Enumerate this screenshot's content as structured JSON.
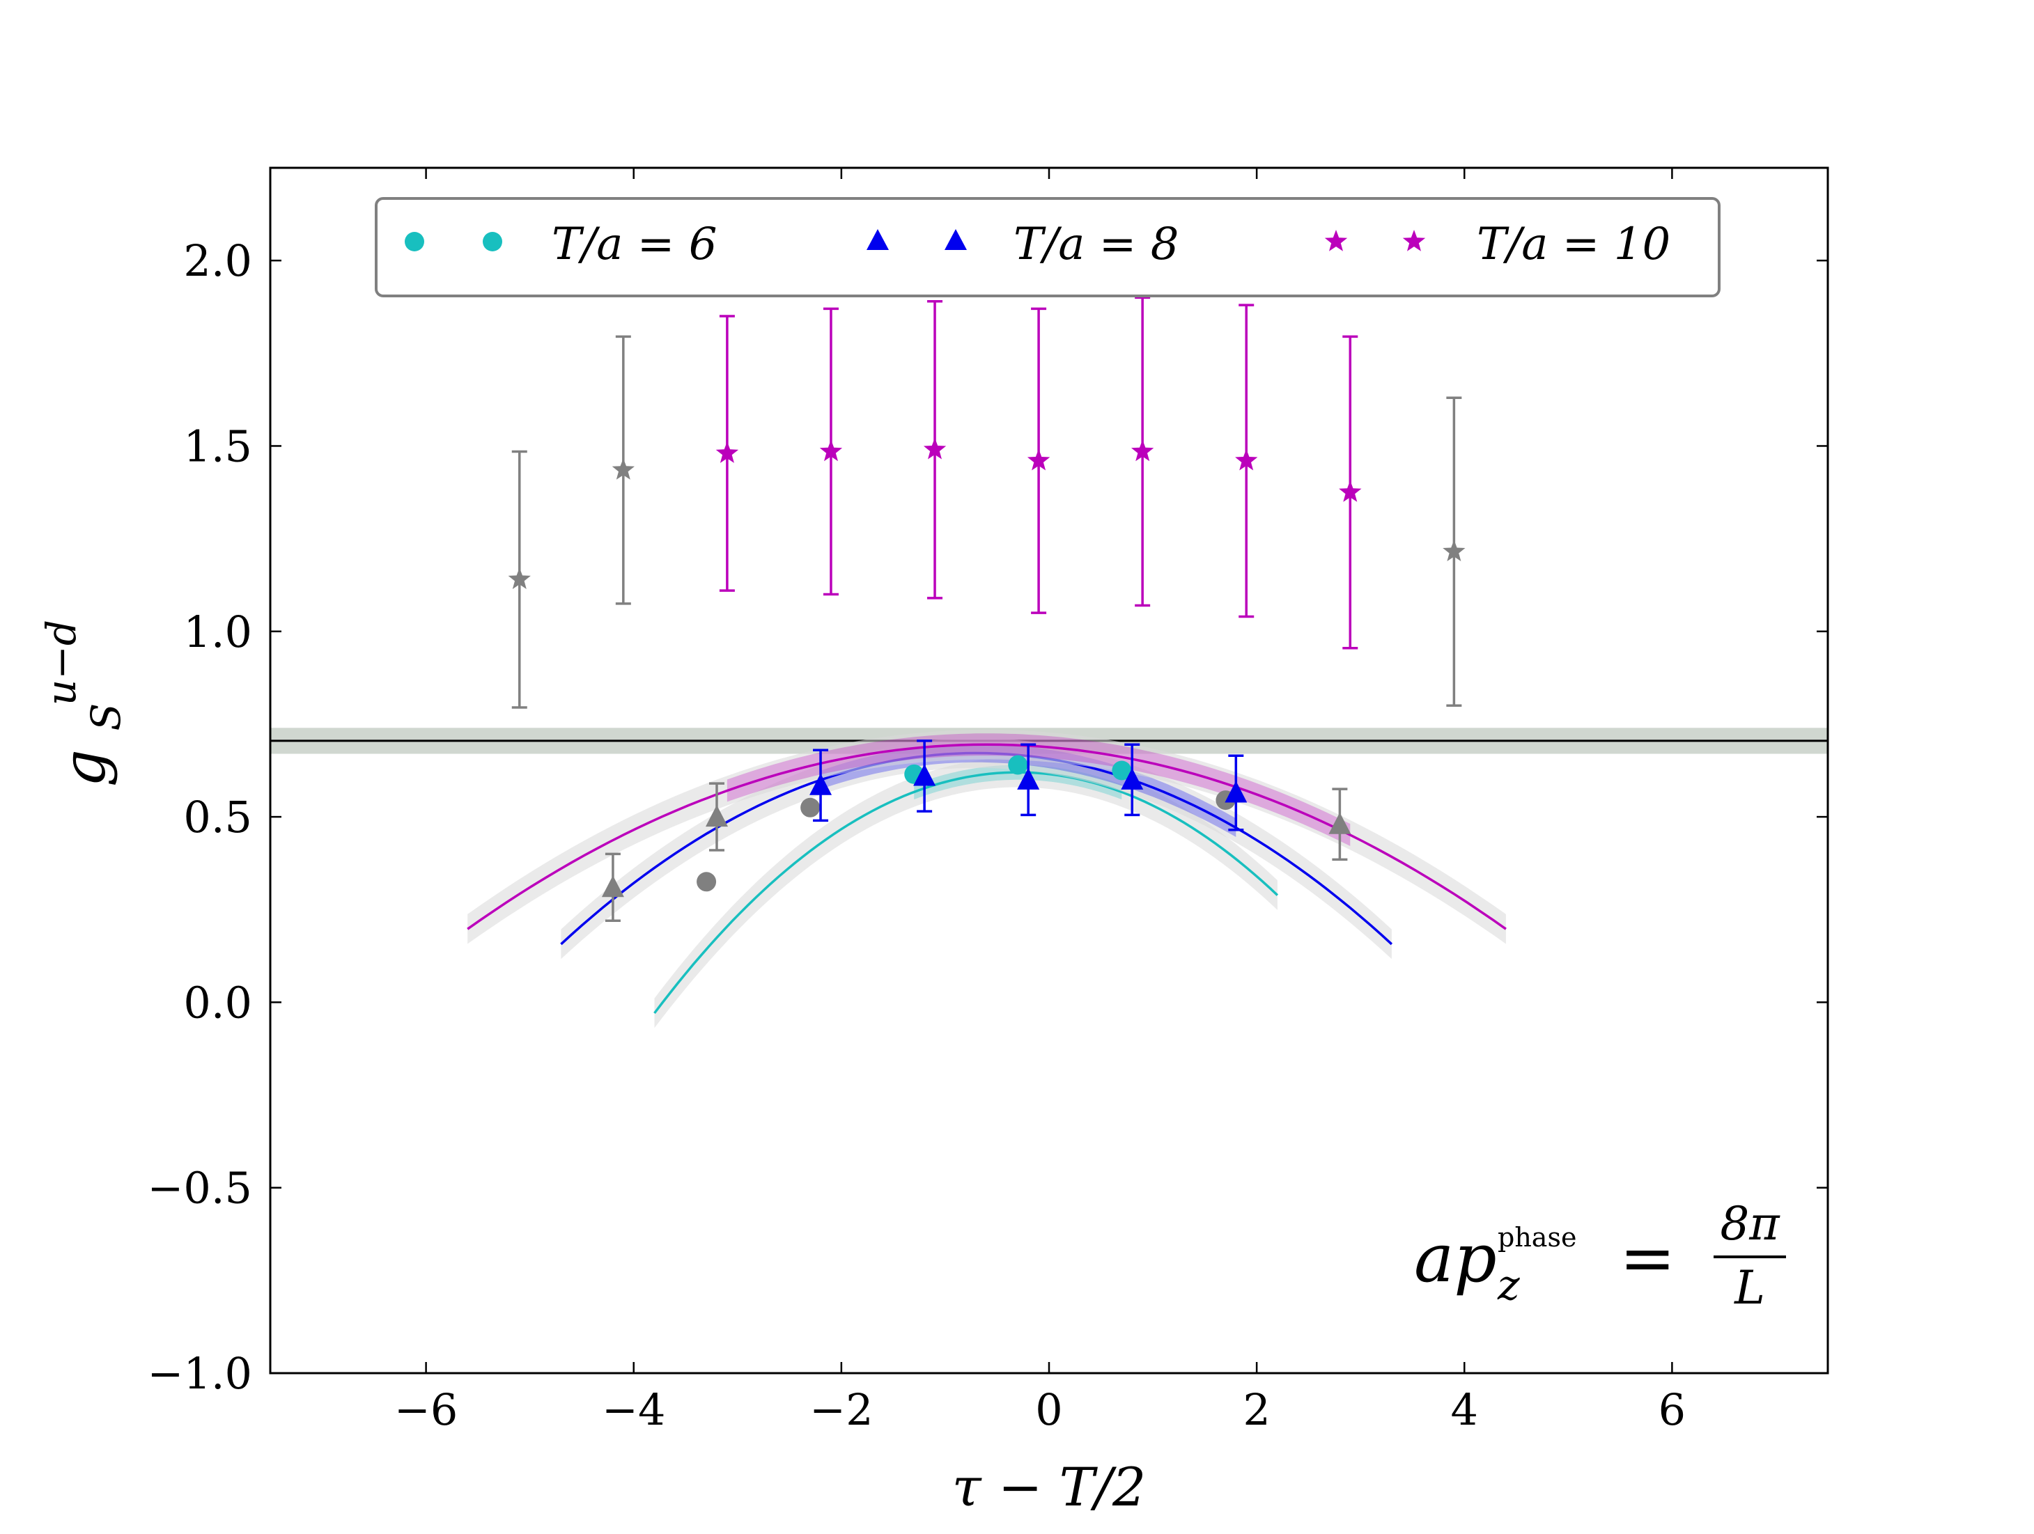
{
  "chart_data": {
    "type": "scatter",
    "xlabel": "τ − T/2",
    "ylabel": "g",
    "ylabel_sub": "S",
    "ylabel_sup": "u−d",
    "xlim": [
      -7.5,
      7.5
    ],
    "ylim": [
      -1.0,
      2.25
    ],
    "xticks": [
      -6,
      -4,
      -2,
      0,
      2,
      4,
      6
    ],
    "xtick_labels": [
      "−6",
      "−4",
      "−2",
      "0",
      "2",
      "4",
      "6"
    ],
    "yticks": [
      -1.0,
      -0.5,
      0.0,
      0.5,
      1.0,
      1.5,
      2.0
    ],
    "ytick_labels": [
      "−1.0",
      "−0.5",
      "0.0",
      "0.5",
      "1.0",
      "1.5",
      "2.0"
    ],
    "grid": false,
    "legend_position": "top",
    "annotation": {
      "lhs": "ap",
      "sub": "z",
      "sup": "phase",
      "eq": "=",
      "num": "8π",
      "den": "L"
    },
    "horizontal_band": {
      "value": 0.705,
      "low": 0.67,
      "high": 0.74,
      "line_color": "#000000",
      "band_color": "#c8d0c8"
    },
    "series": [
      {
        "name": "T/a = 6",
        "legend_label": "T/a = 6",
        "marker": "circle",
        "color": "#18bfbf",
        "excluded_color": "#808080",
        "points": [
          {
            "x": -3.3,
            "y": 0.325,
            "err": 0.0,
            "excluded": true
          },
          {
            "x": -2.3,
            "y": 0.525,
            "err": 0.0,
            "excluded": true
          },
          {
            "x": -1.3,
            "y": 0.615,
            "err": 0.0,
            "excluded": false
          },
          {
            "x": -0.3,
            "y": 0.64,
            "err": 0.0,
            "excluded": false
          },
          {
            "x": 0.7,
            "y": 0.625,
            "err": 0.0,
            "excluded": false
          },
          {
            "x": 1.7,
            "y": 0.545,
            "err": 0.0,
            "excluded": true
          }
        ],
        "fit": {
          "x0": -0.3,
          "a": 0.62,
          "c": 0.053,
          "xmin": -3.8,
          "xmax": 2.2,
          "band": [
            -1.3,
            0.7
          ],
          "band_halfwidth": 0.02
        }
      },
      {
        "name": "T/a = 8",
        "legend_label": "T/a = 8",
        "marker": "triangle",
        "color": "#0000ee",
        "excluded_color": "#808080",
        "points": [
          {
            "x": -4.2,
            "y": 0.31,
            "err": 0.09,
            "excluded": true
          },
          {
            "x": -3.2,
            "y": 0.5,
            "err": 0.09,
            "excluded": true
          },
          {
            "x": -2.2,
            "y": 0.585,
            "err": 0.095,
            "excluded": false
          },
          {
            "x": -1.2,
            "y": 0.61,
            "err": 0.095,
            "excluded": false
          },
          {
            "x": -0.2,
            "y": 0.6,
            "err": 0.095,
            "excluded": false
          },
          {
            "x": 0.8,
            "y": 0.6,
            "err": 0.095,
            "excluded": false
          },
          {
            "x": 1.8,
            "y": 0.565,
            "err": 0.1,
            "excluded": false
          },
          {
            "x": 2.8,
            "y": 0.48,
            "err": 0.095,
            "excluded": true
          }
        ],
        "fit": {
          "x0": -0.7,
          "a": 0.672,
          "c": 0.0322,
          "xmin": -4.7,
          "xmax": 3.3,
          "band": [
            -2.2,
            1.8
          ],
          "band_halfwidth": 0.025
        }
      },
      {
        "name": "T/a = 10",
        "legend_label": "T/a = 10",
        "marker": "star",
        "color": "#bb00bb",
        "excluded_color": "#808080",
        "points": [
          {
            "x": -5.1,
            "y": 1.14,
            "err": 0.345,
            "excluded": true
          },
          {
            "x": -4.1,
            "y": 1.435,
            "err": 0.36,
            "excluded": true
          },
          {
            "x": -3.1,
            "y": 1.48,
            "err": 0.37,
            "excluded": false
          },
          {
            "x": -2.1,
            "y": 1.485,
            "err": 0.385,
            "excluded": false
          },
          {
            "x": -1.1,
            "y": 1.49,
            "err": 0.4,
            "excluded": false
          },
          {
            "x": -0.1,
            "y": 1.46,
            "err": 0.41,
            "excluded": false
          },
          {
            "x": 0.9,
            "y": 1.485,
            "err": 0.415,
            "excluded": false
          },
          {
            "x": 1.9,
            "y": 1.46,
            "err": 0.42,
            "excluded": false
          },
          {
            "x": 2.9,
            "y": 1.375,
            "err": 0.42,
            "excluded": false
          },
          {
            "x": 3.9,
            "y": 1.215,
            "err": 0.415,
            "excluded": true
          }
        ],
        "fit": {
          "x0": -0.6,
          "a": 0.695,
          "c": 0.0199,
          "xmin": -5.6,
          "xmax": 4.4,
          "band": [
            -3.1,
            2.9
          ],
          "band_halfwidth": 0.03
        }
      }
    ]
  }
}
